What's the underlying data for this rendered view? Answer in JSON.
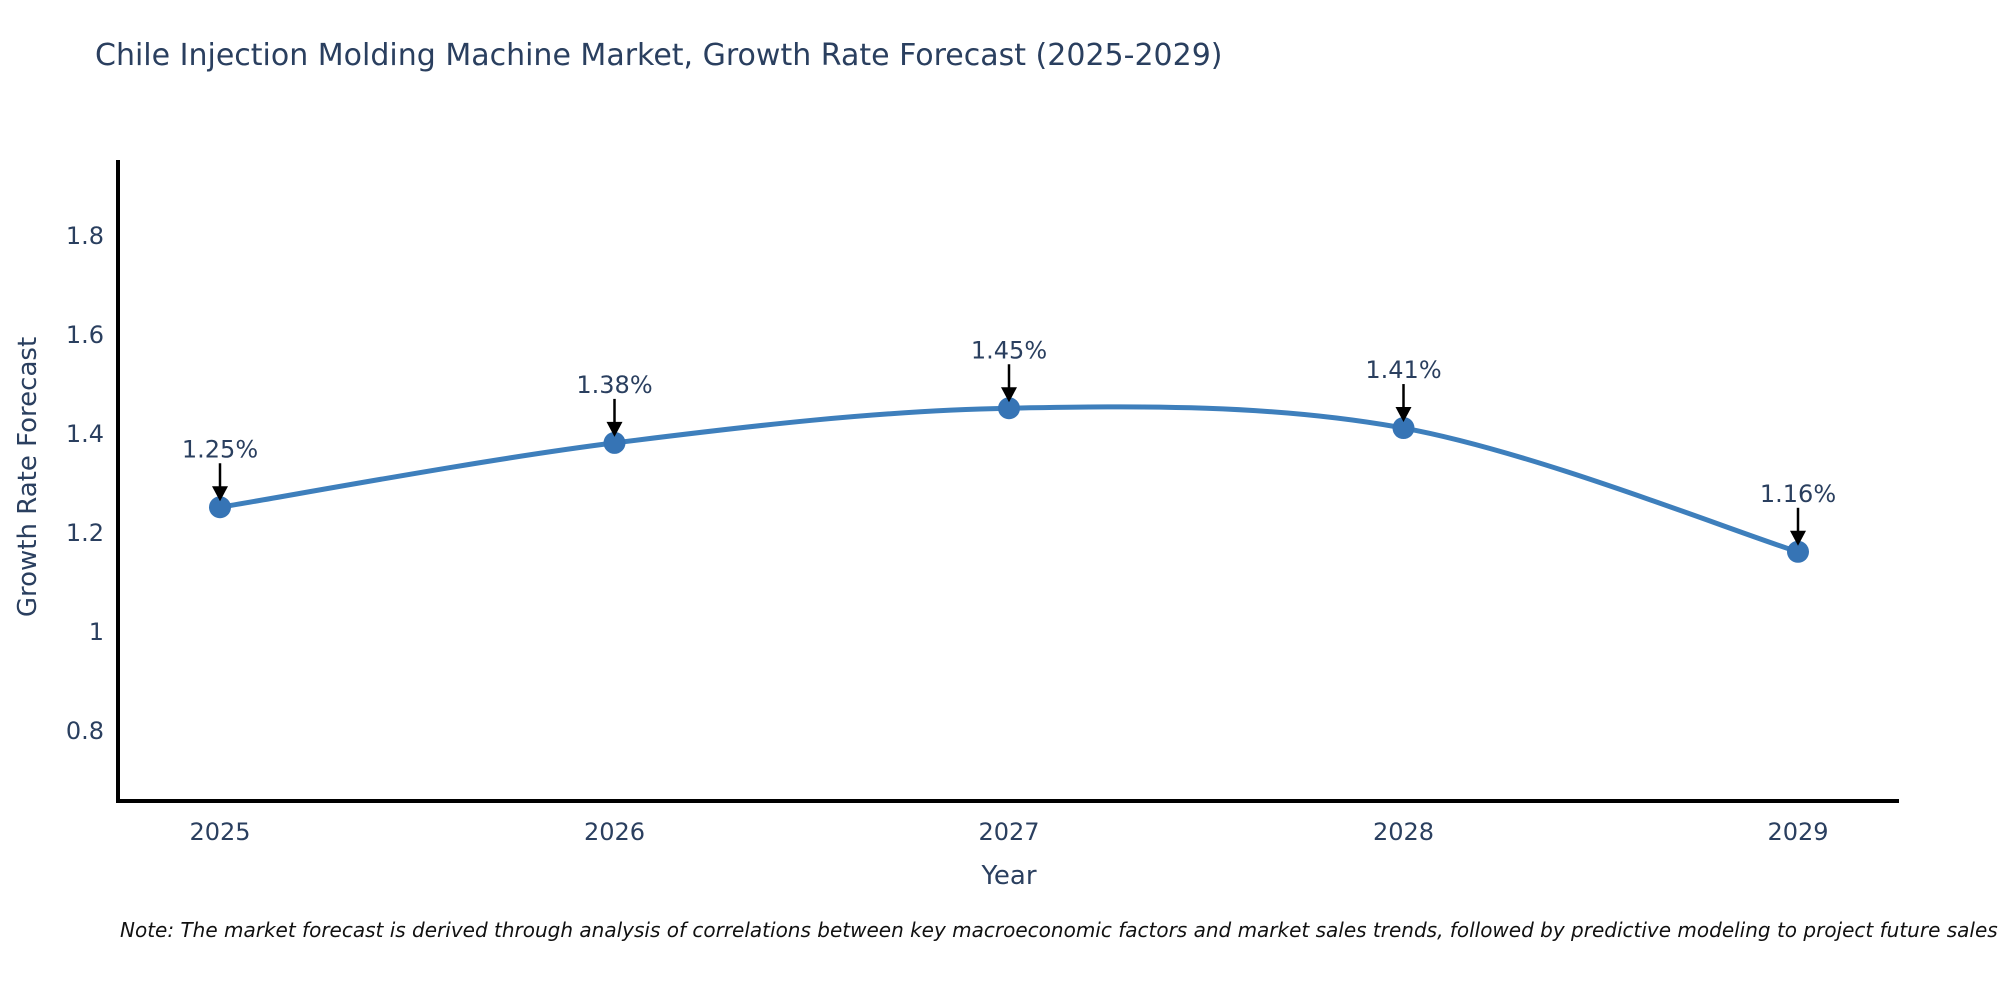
{
  "chart_data": {
    "type": "line",
    "title": "Chile Injection Molding Machine Market, Growth Rate Forecast (2025-2029)",
    "xlabel": "Year",
    "ylabel": "Growth Rate Forecast",
    "categories": [
      "2025",
      "2026",
      "2027",
      "2028",
      "2029"
    ],
    "values": [
      1.25,
      1.38,
      1.45,
      1.41,
      1.16
    ],
    "point_labels": [
      "1.25%",
      "1.38%",
      "1.45%",
      "1.41%",
      "1.16%"
    ],
    "y_tick_labels": [
      "1.8",
      "1.6",
      "1.4",
      "1.2",
      "1",
      "0.8"
    ],
    "y_tick_values": [
      1.8,
      1.6,
      1.4,
      1.2,
      1.0,
      0.8
    ],
    "ylim": [
      0.66,
      1.95
    ],
    "grid": false,
    "legend": "none",
    "line_shape": "spline",
    "colors": {
      "line": "#3E7FBC",
      "marker": "#3674B5",
      "axis": "#000000",
      "text": "#2A3F5F",
      "annotation_arrow": "#000000"
    }
  },
  "note": {
    "text": "Note: The market forecast is derived through analysis of correlations between key macroeconomic factors and market sales trends, followed by predictive modeling to project future sales"
  }
}
